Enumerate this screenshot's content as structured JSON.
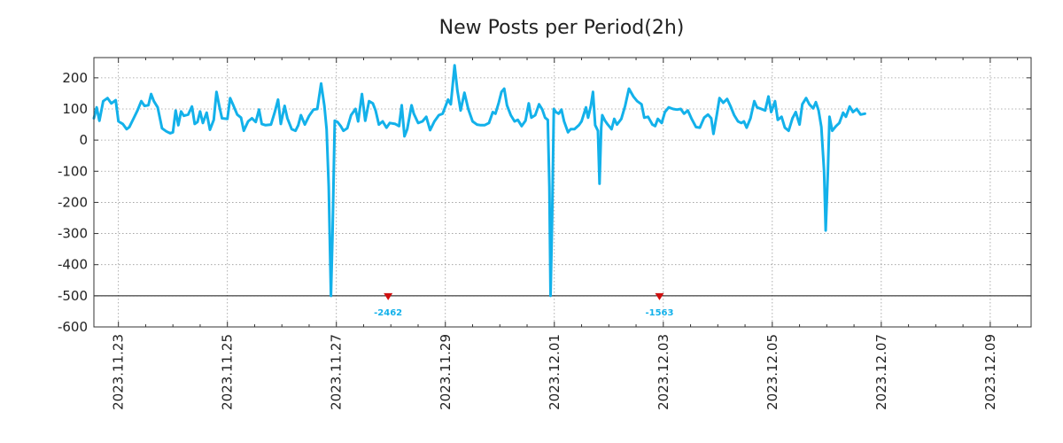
{
  "chart_data": {
    "type": "line",
    "title": "New Posts per Period(2h)",
    "xlabel": "",
    "ylabel": "",
    "series_color": "#13b1ea",
    "marker_color": "#d01010",
    "annotation_color": "#13b1ea",
    "ylim": [
      -600,
      265
    ],
    "yticks": [
      200,
      100,
      0,
      -100,
      -200,
      -300,
      -400,
      -500,
      -600
    ],
    "xlim": [
      -0.45,
      16.75
    ],
    "xticks": [
      {
        "x": 0,
        "label": "2023.11.23"
      },
      {
        "x": 2,
        "label": "2023.11.25"
      },
      {
        "x": 4,
        "label": "2023.11.27"
      },
      {
        "x": 6,
        "label": "2023.11.29"
      },
      {
        "x": 8,
        "label": "2023.12.01"
      },
      {
        "x": 10,
        "label": "2023.12.03"
      },
      {
        "x": 12,
        "label": "2023.12.05"
      },
      {
        "x": 14,
        "label": "2023.12.07"
      },
      {
        "x": 16,
        "label": "2023.12.09"
      }
    ],
    "clip_floor": -500,
    "annotations": [
      {
        "x": 4.95,
        "value": -2462,
        "label": "-2462"
      },
      {
        "x": 9.93,
        "value": -1563,
        "label": "-1563"
      }
    ],
    "series": [
      {
        "name": "New Posts",
        "points": [
          [
            -0.45,
            70
          ],
          [
            -0.4,
            105
          ],
          [
            -0.35,
            62
          ],
          [
            -0.28,
            125
          ],
          [
            -0.2,
            135
          ],
          [
            -0.13,
            118
          ],
          [
            -0.05,
            128
          ],
          [
            0.0,
            60
          ],
          [
            0.08,
            52
          ],
          [
            0.15,
            35
          ],
          [
            0.2,
            42
          ],
          [
            0.28,
            70
          ],
          [
            0.35,
            95
          ],
          [
            0.42,
            125
          ],
          [
            0.48,
            110
          ],
          [
            0.55,
            112
          ],
          [
            0.6,
            148
          ],
          [
            0.65,
            125
          ],
          [
            0.72,
            105
          ],
          [
            0.8,
            38
          ],
          [
            0.88,
            28
          ],
          [
            0.95,
            22
          ],
          [
            1.0,
            25
          ],
          [
            1.05,
            95
          ],
          [
            1.1,
            48
          ],
          [
            1.15,
            92
          ],
          [
            1.2,
            78
          ],
          [
            1.28,
            82
          ],
          [
            1.35,
            108
          ],
          [
            1.4,
            52
          ],
          [
            1.45,
            58
          ],
          [
            1.5,
            92
          ],
          [
            1.55,
            55
          ],
          [
            1.62,
            88
          ],
          [
            1.68,
            33
          ],
          [
            1.75,
            65
          ],
          [
            1.8,
            155
          ],
          [
            1.85,
            110
          ],
          [
            1.9,
            70
          ],
          [
            2.0,
            68
          ],
          [
            2.05,
            135
          ],
          [
            2.1,
            115
          ],
          [
            2.18,
            82
          ],
          [
            2.25,
            72
          ],
          [
            2.3,
            30
          ],
          [
            2.38,
            60
          ],
          [
            2.45,
            70
          ],
          [
            2.52,
            58
          ],
          [
            2.58,
            98
          ],
          [
            2.63,
            52
          ],
          [
            2.7,
            48
          ],
          [
            2.8,
            50
          ],
          [
            2.87,
            90
          ],
          [
            2.93,
            130
          ],
          [
            2.98,
            52
          ],
          [
            3.05,
            110
          ],
          [
            3.1,
            70
          ],
          [
            3.18,
            35
          ],
          [
            3.25,
            30
          ],
          [
            3.3,
            48
          ],
          [
            3.35,
            80
          ],
          [
            3.42,
            50
          ],
          [
            3.5,
            78
          ],
          [
            3.58,
            98
          ],
          [
            3.65,
            100
          ],
          [
            3.72,
            182
          ],
          [
            3.78,
            110
          ],
          [
            3.82,
            35
          ],
          [
            3.86,
            -150
          ],
          [
            3.9,
            -505
          ],
          [
            3.93,
            -300
          ],
          [
            3.97,
            62
          ],
          [
            4.02,
            58
          ],
          [
            4.08,
            45
          ],
          [
            4.13,
            30
          ],
          [
            4.2,
            38
          ],
          [
            4.27,
            80
          ],
          [
            4.35,
            100
          ],
          [
            4.4,
            60
          ],
          [
            4.47,
            148
          ],
          [
            4.53,
            62
          ],
          [
            4.6,
            125
          ],
          [
            4.67,
            118
          ],
          [
            4.72,
            95
          ],
          [
            4.78,
            50
          ],
          [
            4.85,
            60
          ],
          [
            4.92,
            40
          ],
          [
            4.98,
            55
          ],
          [
            5.08,
            52
          ],
          [
            5.15,
            45
          ],
          [
            5.2,
            112
          ],
          [
            5.25,
            12
          ],
          [
            5.3,
            35
          ],
          [
            5.38,
            112
          ],
          [
            5.42,
            85
          ],
          [
            5.5,
            55
          ],
          [
            5.58,
            60
          ],
          [
            5.65,
            75
          ],
          [
            5.72,
            32
          ],
          [
            5.8,
            60
          ],
          [
            5.88,
            80
          ],
          [
            5.95,
            85
          ],
          [
            6.05,
            130
          ],
          [
            6.1,
            115
          ],
          [
            6.17,
            240
          ],
          [
            6.22,
            160
          ],
          [
            6.28,
            95
          ],
          [
            6.35,
            152
          ],
          [
            6.42,
            100
          ],
          [
            6.5,
            60
          ],
          [
            6.58,
            50
          ],
          [
            6.65,
            48
          ],
          [
            6.72,
            48
          ],
          [
            6.8,
            55
          ],
          [
            6.87,
            90
          ],
          [
            6.92,
            85
          ],
          [
            6.98,
            120
          ],
          [
            7.03,
            155
          ],
          [
            7.08,
            165
          ],
          [
            7.13,
            112
          ],
          [
            7.2,
            80
          ],
          [
            7.27,
            60
          ],
          [
            7.33,
            65
          ],
          [
            7.4,
            45
          ],
          [
            7.47,
            62
          ],
          [
            7.53,
            118
          ],
          [
            7.58,
            72
          ],
          [
            7.65,
            80
          ],
          [
            7.72,
            115
          ],
          [
            7.78,
            98
          ],
          [
            7.83,
            72
          ],
          [
            7.88,
            65
          ],
          [
            7.91,
            -150
          ],
          [
            7.93,
            -505
          ],
          [
            7.96,
            -250
          ],
          [
            7.99,
            100
          ],
          [
            8.03,
            90
          ],
          [
            8.08,
            85
          ],
          [
            8.13,
            98
          ],
          [
            8.18,
            60
          ],
          [
            8.25,
            25
          ],
          [
            8.3,
            35
          ],
          [
            8.37,
            35
          ],
          [
            8.45,
            48
          ],
          [
            8.5,
            60
          ],
          [
            8.58,
            105
          ],
          [
            8.62,
            72
          ],
          [
            8.67,
            110
          ],
          [
            8.71,
            155
          ],
          [
            8.75,
            48
          ],
          [
            8.8,
            30
          ],
          [
            8.83,
            -140
          ],
          [
            8.86,
            40
          ],
          [
            8.88,
            80
          ],
          [
            8.93,
            62
          ],
          [
            8.98,
            50
          ],
          [
            9.05,
            35
          ],
          [
            9.1,
            68
          ],
          [
            9.15,
            50
          ],
          [
            9.23,
            68
          ],
          [
            9.3,
            110
          ],
          [
            9.37,
            165
          ],
          [
            9.45,
            140
          ],
          [
            9.52,
            125
          ],
          [
            9.6,
            115
          ],
          [
            9.65,
            72
          ],
          [
            9.72,
            75
          ],
          [
            9.8,
            50
          ],
          [
            9.85,
            45
          ],
          [
            9.9,
            68
          ],
          [
            9.97,
            55
          ],
          [
            10.03,
            90
          ],
          [
            10.1,
            105
          ],
          [
            10.18,
            100
          ],
          [
            10.25,
            98
          ],
          [
            10.32,
            100
          ],
          [
            10.38,
            85
          ],
          [
            10.45,
            95
          ],
          [
            10.52,
            68
          ],
          [
            10.6,
            42
          ],
          [
            10.67,
            40
          ],
          [
            10.75,
            72
          ],
          [
            10.82,
            82
          ],
          [
            10.88,
            70
          ],
          [
            10.92,
            20
          ],
          [
            10.98,
            80
          ],
          [
            11.03,
            135
          ],
          [
            11.1,
            120
          ],
          [
            11.17,
            132
          ],
          [
            11.23,
            110
          ],
          [
            11.3,
            80
          ],
          [
            11.37,
            60
          ],
          [
            11.43,
            55
          ],
          [
            11.48,
            60
          ],
          [
            11.53,
            40
          ],
          [
            11.6,
            70
          ],
          [
            11.67,
            125
          ],
          [
            11.72,
            105
          ],
          [
            11.8,
            100
          ],
          [
            11.87,
            95
          ],
          [
            11.93,
            140
          ],
          [
            11.98,
            90
          ],
          [
            12.05,
            125
          ],
          [
            12.1,
            65
          ],
          [
            12.17,
            75
          ],
          [
            12.23,
            40
          ],
          [
            12.3,
            30
          ],
          [
            12.37,
            70
          ],
          [
            12.43,
            90
          ],
          [
            12.5,
            50
          ],
          [
            12.55,
            115
          ],
          [
            12.62,
            135
          ],
          [
            12.68,
            115
          ],
          [
            12.75,
            102
          ],
          [
            12.8,
            122
          ],
          [
            12.85,
            95
          ],
          [
            12.9,
            42
          ],
          [
            12.95,
            -100
          ],
          [
            12.98,
            -290
          ],
          [
            13.02,
            -100
          ],
          [
            13.05,
            75
          ],
          [
            13.1,
            30
          ],
          [
            13.17,
            45
          ],
          [
            13.23,
            55
          ],
          [
            13.3,
            88
          ],
          [
            13.35,
            75
          ],
          [
            13.42,
            108
          ],
          [
            13.48,
            90
          ],
          [
            13.55,
            100
          ],
          [
            13.62,
            82
          ],
          [
            13.7,
            85
          ]
        ]
      }
    ]
  }
}
